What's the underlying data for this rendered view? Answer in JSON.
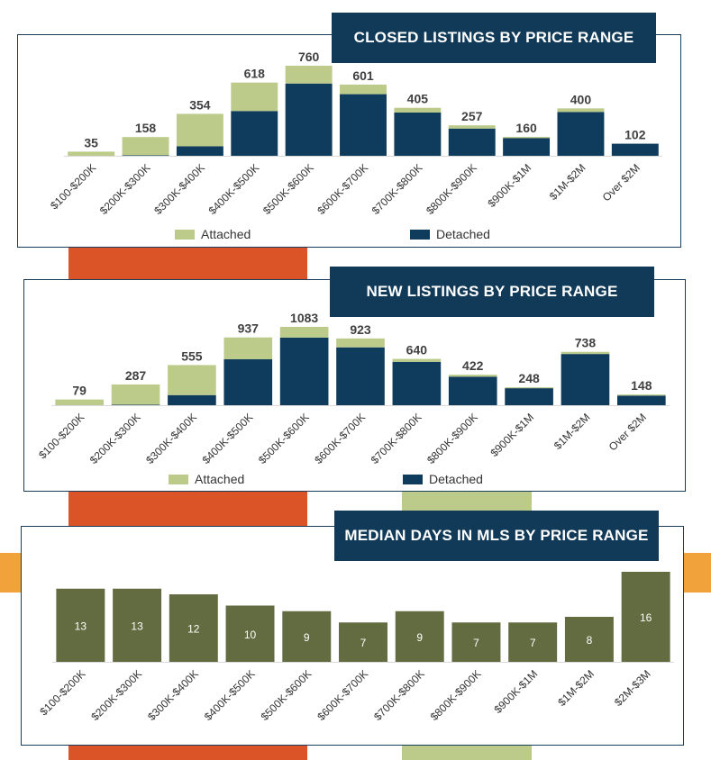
{
  "colors": {
    "attached": "#bccb8a",
    "detached": "#0f3c5c",
    "days_bar": "#636b40",
    "title_bg": "#113a58",
    "deco_orange": "#db5427",
    "deco_green": "#bccb8a",
    "deco_side": "#f2a23a"
  },
  "charts": {
    "closed": {
      "title": "CLOSED LISTINGS BY PRICE RANGE",
      "legend": {
        "attached": "Attached",
        "detached": "Detached"
      }
    },
    "new": {
      "title": "NEW LISTINGS BY PRICE RANGE",
      "legend": {
        "attached": "Attached",
        "detached": "Detached"
      }
    },
    "days": {
      "title": "MEDIAN DAYS IN MLS BY PRICE RANGE"
    }
  },
  "chart_data": [
    {
      "type": "bar",
      "stacked": true,
      "title": "CLOSED LISTINGS BY PRICE RANGE",
      "categories": [
        "$100-$200K",
        "$200K-$300K",
        "$300K-$400K",
        "$400K-$500K",
        "$500K-$600K",
        "$600K-$700K",
        "$700K-$800K",
        "$800K-$900K",
        "$900K-$1M",
        "$1M-$2M",
        "Over $2M"
      ],
      "totals": [
        35,
        158,
        354,
        618,
        760,
        601,
        405,
        257,
        160,
        400,
        102
      ],
      "series": [
        {
          "name": "Detached",
          "values": [
            0,
            5,
            80,
            378,
            610,
            520,
            365,
            230,
            150,
            370,
            102
          ]
        },
        {
          "name": "Attached",
          "values": [
            35,
            153,
            274,
            240,
            150,
            81,
            40,
            27,
            10,
            30,
            0
          ]
        }
      ],
      "ylim": [
        0,
        760
      ],
      "legend": "bottom"
    },
    {
      "type": "bar",
      "stacked": true,
      "title": "NEW LISTINGS BY PRICE RANGE",
      "categories": [
        "$100-$200K",
        "$200K-$300K",
        "$300K-$400K",
        "$400K-$500K",
        "$500K-$600K",
        "$600K-$700K",
        "$700K-$800K",
        "$800K-$900K",
        "$900K-$1M",
        "$1M-$2M",
        "Over $2M"
      ],
      "totals": [
        79,
        287,
        555,
        937,
        1083,
        923,
        640,
        422,
        248,
        738,
        148
      ],
      "series": [
        {
          "name": "Detached",
          "values": [
            0,
            8,
            140,
            635,
            935,
            800,
            600,
            395,
            235,
            708,
            133
          ]
        },
        {
          "name": "Attached",
          "values": [
            79,
            279,
            415,
            302,
            148,
            123,
            40,
            27,
            13,
            30,
            15
          ]
        }
      ],
      "ylim": [
        0,
        1083
      ],
      "legend": "bottom"
    },
    {
      "type": "bar",
      "title": "MEDIAN DAYS IN MLS BY PRICE RANGE",
      "categories": [
        "$100-$200K",
        "$200K-$300K",
        "$300K-$400K",
        "$400K-$500K",
        "$500K-$600K",
        "$600K-$700K",
        "$700K-$800K",
        "$800K-$900K",
        "$900K-$1M",
        "$1M-$2M",
        "$2M-$3M"
      ],
      "values": [
        13,
        13,
        12,
        10,
        9,
        7,
        9,
        7,
        7,
        8,
        16
      ],
      "ylim": [
        0,
        16
      ]
    }
  ]
}
